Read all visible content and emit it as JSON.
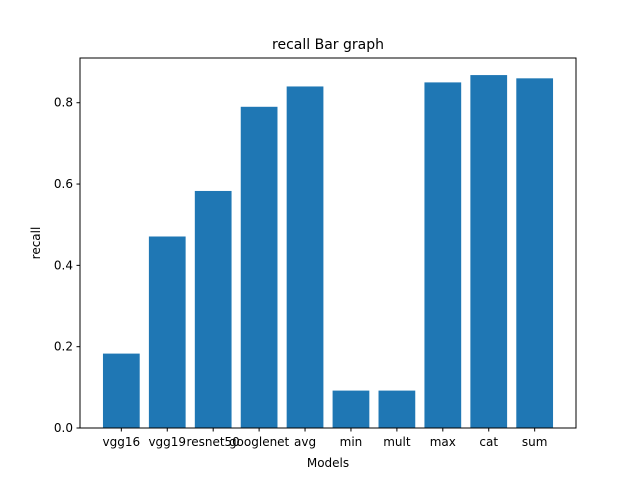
{
  "chart_data": {
    "type": "bar",
    "title": "recall Bar graph",
    "xlabel": "Models",
    "ylabel": "recall",
    "categories": [
      "vgg16",
      "vgg19",
      "resnet50",
      "googlenet",
      "avg",
      "min",
      "mult",
      "max",
      "cat",
      "sum"
    ],
    "values": [
      0.183,
      0.471,
      0.583,
      0.79,
      0.84,
      0.092,
      0.092,
      0.85,
      0.868,
      0.86
    ],
    "ylim": [
      0,
      0.91
    ],
    "yticks": [
      0.0,
      0.2,
      0.4,
      0.6,
      0.8
    ],
    "ytick_labels": [
      "0.0",
      "0.2",
      "0.4",
      "0.6",
      "0.8"
    ],
    "bar_color": "#1f77b4",
    "grid": false,
    "legend": "none"
  }
}
